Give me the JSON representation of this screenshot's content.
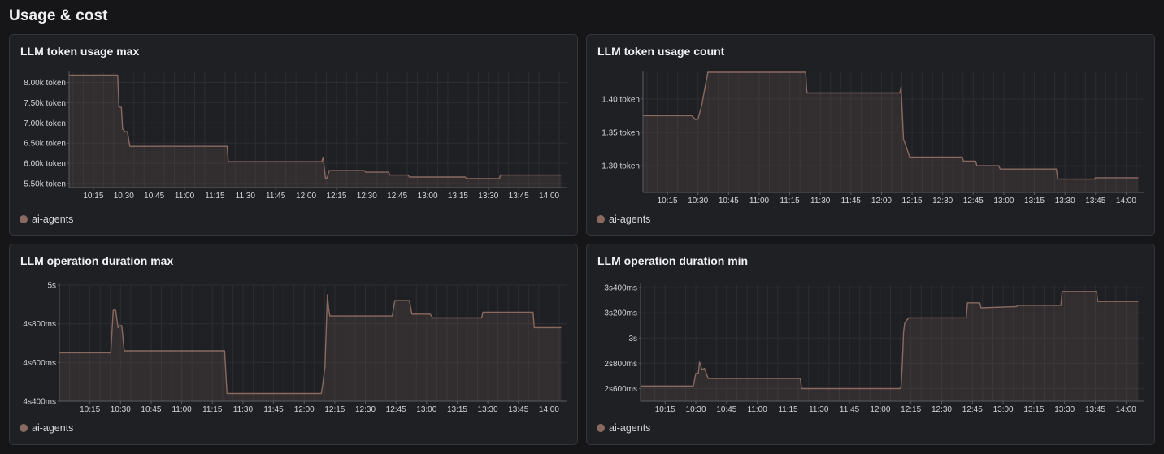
{
  "page": {
    "section_title": "Usage & cost"
  },
  "colors": {
    "series": "#8a6a60",
    "legend_dot": "#8a6a60",
    "grid": "#2c2d33",
    "axis": "#5a5b62"
  },
  "chart_data": [
    {
      "type": "area",
      "title": "LLM token usage max",
      "legend": [
        "ai-agents"
      ],
      "x_ticks": [
        "10:15",
        "10:30",
        "10:45",
        "11:00",
        "11:15",
        "11:30",
        "11:45",
        "12:00",
        "12:15",
        "12:30",
        "12:45",
        "13:00",
        "13:15",
        "13:30",
        "13:45",
        "14:00"
      ],
      "y_ticks": [
        {
          "value": 5500,
          "label": "5.50k token"
        },
        {
          "value": 6000,
          "label": "6.00k token"
        },
        {
          "value": 6500,
          "label": "6.50k token"
        },
        {
          "value": 7000,
          "label": "7.00k token"
        },
        {
          "value": 7500,
          "label": "7.50k token"
        },
        {
          "value": 8000,
          "label": "8.00k token"
        }
      ],
      "xlim": [
        10.05,
        14.15
      ],
      "ylim": [
        5400,
        8250
      ],
      "series": [
        {
          "name": "ai-agents",
          "x": [
            10.05,
            10.45,
            10.46,
            10.48,
            10.49,
            10.51,
            10.53,
            10.55,
            10.6,
            11.35,
            11.36,
            12.13,
            12.14,
            12.16,
            12.17,
            12.19,
            12.2,
            12.48,
            12.49,
            12.68,
            12.69,
            12.84,
            12.85,
            13.31,
            13.32,
            13.59,
            13.6,
            14.1
          ],
          "values": [
            8180,
            8180,
            7400,
            7380,
            6850,
            6780,
            6780,
            6420,
            6420,
            6420,
            6040,
            6040,
            6150,
            5620,
            5620,
            5820,
            5820,
            5820,
            5780,
            5780,
            5710,
            5710,
            5660,
            5660,
            5620,
            5620,
            5710,
            5710
          ]
        }
      ]
    },
    {
      "type": "area",
      "title": "LLM token usage count",
      "legend": [
        "ai-agents"
      ],
      "x_ticks": [
        "10:15",
        "10:30",
        "10:45",
        "11:00",
        "11:15",
        "11:30",
        "11:45",
        "12:00",
        "12:15",
        "12:30",
        "12:45",
        "13:00",
        "13:15",
        "13:30",
        "13:45",
        "14:00"
      ],
      "y_ticks": [
        {
          "value": 1.3,
          "label": "1.30 token"
        },
        {
          "value": 1.35,
          "label": "1.35 token"
        },
        {
          "value": 1.4,
          "label": "1.40 token"
        }
      ],
      "xlim": [
        10.05,
        14.15
      ],
      "ylim": [
        1.26,
        1.44
      ],
      "series": [
        {
          "name": "ai-agents",
          "x": [
            10.05,
            10.45,
            10.48,
            10.5,
            10.53,
            10.55,
            10.58,
            11.38,
            11.39,
            12.15,
            12.16,
            12.17,
            12.18,
            12.19,
            12.2,
            12.23,
            12.66,
            12.67,
            12.77,
            12.78,
            12.96,
            12.97,
            13.43,
            13.44,
            13.74,
            13.75,
            14.1
          ],
          "values": [
            1.375,
            1.375,
            1.369,
            1.37,
            1.39,
            1.41,
            1.44,
            1.44,
            1.409,
            1.409,
            1.418,
            1.38,
            1.34,
            1.335,
            1.33,
            1.313,
            1.313,
            1.307,
            1.307,
            1.3,
            1.3,
            1.295,
            1.295,
            1.28,
            1.28,
            1.282,
            1.282
          ]
        }
      ]
    },
    {
      "type": "area",
      "title": "LLM operation duration max",
      "legend": [
        "ai-agents"
      ],
      "x_ticks": [
        "10:15",
        "10:30",
        "10:45",
        "11:00",
        "11:15",
        "11:30",
        "11:45",
        "12:00",
        "12:15",
        "12:30",
        "12:45",
        "13:00",
        "13:15",
        "13:30",
        "13:45",
        "14:00"
      ],
      "y_ticks": [
        {
          "value": 4400,
          "label": "4s400ms"
        },
        {
          "value": 4600,
          "label": "4s600ms"
        },
        {
          "value": 4800,
          "label": "4s800ms"
        },
        {
          "value": 5000,
          "label": "5s"
        }
      ],
      "xlim": [
        10.0,
        14.15
      ],
      "ylim": [
        4400,
        5000
      ],
      "series": [
        {
          "name": "ai-agents",
          "x": [
            10.0,
            10.42,
            10.44,
            10.46,
            10.48,
            10.49,
            10.51,
            10.53,
            10.55,
            10.58,
            11.35,
            11.37,
            12.14,
            12.15,
            12.17,
            12.19,
            12.2,
            12.21,
            12.22,
            12.72,
            12.74,
            12.86,
            12.88,
            13.03,
            13.05,
            13.45,
            13.46,
            13.87,
            13.88,
            14.1
          ],
          "values": [
            4650,
            4650,
            4870,
            4870,
            4780,
            4790,
            4790,
            4660,
            4660,
            4660,
            4660,
            4440,
            4440,
            4480,
            4580,
            4950,
            4880,
            4840,
            4840,
            4840,
            4920,
            4920,
            4850,
            4850,
            4830,
            4830,
            4860,
            4860,
            4780,
            4780
          ]
        }
      ]
    },
    {
      "type": "area",
      "title": "LLM operation duration min",
      "legend": [
        "ai-agents"
      ],
      "x_ticks": [
        "10:15",
        "10:30",
        "10:45",
        "11:00",
        "11:15",
        "11:30",
        "11:45",
        "12:00",
        "12:15",
        "12:30",
        "12:45",
        "13:00",
        "13:15",
        "13:30",
        "13:45",
        "14:00"
      ],
      "y_ticks": [
        {
          "value": 2600,
          "label": "2s600ms"
        },
        {
          "value": 2800,
          "label": "2s800ms"
        },
        {
          "value": 3000,
          "label": "3s"
        },
        {
          "value": 3200,
          "label": "3s200ms"
        },
        {
          "value": 3400,
          "label": "3s400ms"
        }
      ],
      "xlim": [
        10.05,
        14.15
      ],
      "ylim": [
        2500,
        3420
      ],
      "series": [
        {
          "name": "ai-agents",
          "x": [
            10.05,
            10.48,
            10.5,
            10.52,
            10.53,
            10.55,
            10.57,
            10.6,
            11.35,
            11.36,
            12.16,
            12.17,
            12.18,
            12.19,
            12.2,
            12.23,
            12.7,
            12.71,
            12.81,
            12.82,
            13.11,
            13.12,
            13.47,
            13.48,
            13.76,
            13.77,
            14.1
          ],
          "values": [
            2620,
            2620,
            2720,
            2720,
            2810,
            2750,
            2760,
            2680,
            2680,
            2600,
            2600,
            2620,
            2800,
            3050,
            3120,
            3160,
            3160,
            3280,
            3280,
            3240,
            3250,
            3260,
            3260,
            3370,
            3370,
            3290,
            3290
          ]
        }
      ]
    }
  ]
}
